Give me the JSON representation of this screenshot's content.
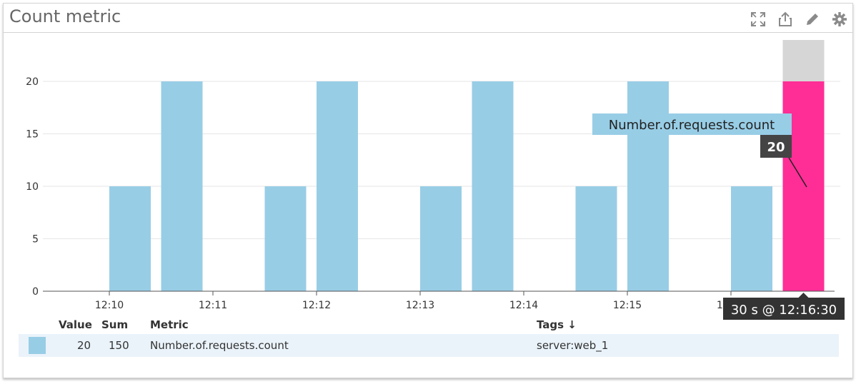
{
  "widget": {
    "title": "Count metric",
    "icons": [
      "expand-icon",
      "share-icon",
      "edit-icon",
      "gear-icon"
    ]
  },
  "chart_data": {
    "type": "bar",
    "title": "Count metric",
    "x_ticks": [
      "12:10",
      "12:11",
      "12:12",
      "12:13",
      "12:14",
      "12:15",
      "12:16"
    ],
    "y_ticks": [
      0,
      5,
      10,
      15,
      20
    ],
    "ylim": [
      0,
      20
    ],
    "grid": true,
    "series": [
      {
        "name": "Number.of.requests.count",
        "color": "#98cde6",
        "highlight_color": "#ff2e96",
        "x": [
          "12:10:00",
          "12:10:30",
          "12:11:30",
          "12:12:00",
          "12:13:00",
          "12:13:30",
          "12:14:30",
          "12:15:00",
          "12:16:00",
          "12:16:30"
        ],
        "values": [
          10,
          20,
          10,
          20,
          10,
          20,
          10,
          20,
          10,
          20
        ]
      }
    ],
    "hover": {
      "metric": "Number.of.requests.count",
      "value": "20",
      "time_label": "30 s @ 12:16:30"
    }
  },
  "legend": {
    "headers": {
      "value": "Value",
      "sum": "Sum",
      "metric": "Metric",
      "tags": "Tags ↓"
    },
    "rows": [
      {
        "value": "20",
        "sum": "150",
        "metric": "Number.of.requests.count",
        "tags": "server:web_1"
      }
    ]
  }
}
